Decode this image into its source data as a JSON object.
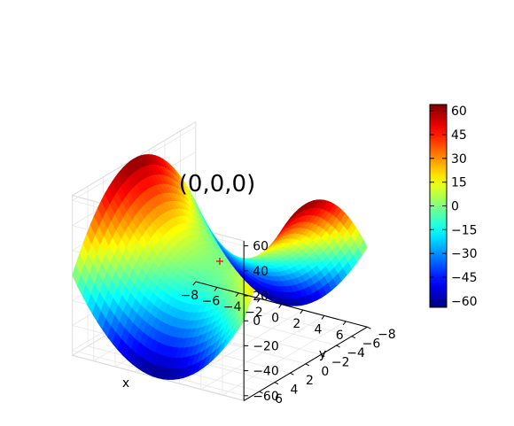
{
  "chart_data": {
    "type": "surface",
    "function": "z = x^2 - y^2",
    "x": {
      "label": "x",
      "range": [
        -8,
        8
      ],
      "ticks": [
        -8,
        -6,
        -4,
        -2,
        0,
        2,
        4,
        6
      ],
      "tick_labels": [
        "−8",
        "−6",
        "−4",
        "−2",
        "0",
        "2",
        "4",
        "6"
      ]
    },
    "y": {
      "label": "y",
      "range": [
        -8,
        8
      ],
      "ticks": [
        -8,
        -6,
        -4,
        -2,
        0,
        2,
        4,
        6
      ],
      "tick_labels": [
        "−8",
        "−6",
        "−4",
        "−2",
        "0",
        "2",
        "4",
        "6"
      ]
    },
    "z": {
      "range": [
        -64,
        64
      ],
      "ticks": [
        -60,
        -40,
        -20,
        0,
        20,
        40,
        60
      ],
      "tick_labels": [
        "−60",
        "−40",
        "−20",
        "0",
        "20",
        "40",
        "60"
      ]
    },
    "colormap": "jet",
    "colorbar": {
      "range": [
        -64,
        64
      ],
      "ticks": [
        -60,
        -45,
        -30,
        -15,
        0,
        15,
        30,
        45,
        60
      ],
      "tick_labels": [
        "−60",
        "−45",
        "−30",
        "−15",
        "0",
        "15",
        "30",
        "45",
        "60"
      ]
    },
    "annotation": {
      "text": "(0,0,0)",
      "point": [
        0,
        0,
        0
      ],
      "marker_color": "#d62728"
    },
    "grid": true,
    "colors": {
      "pane": "#f2f2f2",
      "marker": "#d62728"
    }
  }
}
